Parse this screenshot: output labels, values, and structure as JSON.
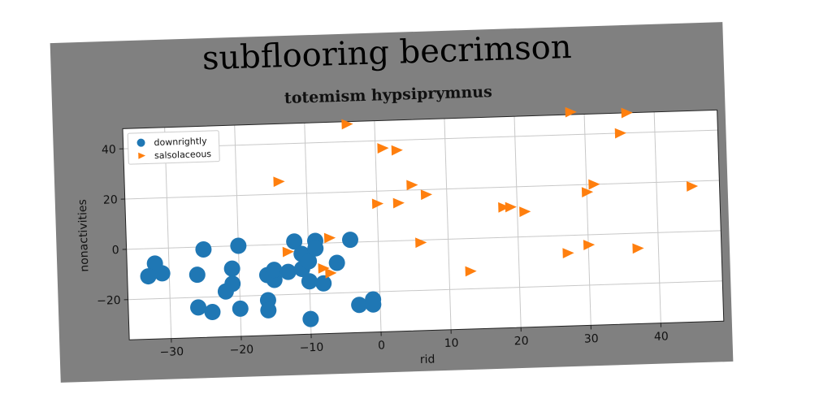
{
  "chart_data": {
    "type": "scatter",
    "suptitle": "subflooring becrimson",
    "title": "totemism hypsiprymnus",
    "xlabel": "rid",
    "ylabel": "nonactivities",
    "xlim": [
      -36,
      49
    ],
    "ylim": [
      -36,
      48
    ],
    "xticks": [
      -30,
      -20,
      -10,
      0,
      10,
      20,
      30,
      40
    ],
    "yticks": [
      -20,
      0,
      20,
      40
    ],
    "grid": true,
    "legend_position": "top-left",
    "series": [
      {
        "name": "downrightly",
        "marker": "circle",
        "color": "#1f77b4",
        "points": [
          [
            -32,
            -6
          ],
          [
            -31,
            -10
          ],
          [
            -33,
            -11
          ],
          [
            -25,
            -1
          ],
          [
            -26,
            -11
          ],
          [
            -26,
            -24
          ],
          [
            -24,
            -26
          ],
          [
            -21,
            -9
          ],
          [
            -21,
            -15
          ],
          [
            -22,
            -18
          ],
          [
            -20,
            0
          ],
          [
            -20,
            -25
          ],
          [
            -16,
            -12
          ],
          [
            -15,
            -14
          ],
          [
            -15,
            -10
          ],
          [
            -16,
            -22
          ],
          [
            -16,
            -26
          ],
          [
            -13,
            -11
          ],
          [
            -12,
            1
          ],
          [
            -11,
            -10
          ],
          [
            -11,
            -4
          ],
          [
            -10,
            -7
          ],
          [
            -9,
            1
          ],
          [
            -9,
            -2
          ],
          [
            -10,
            -15
          ],
          [
            -8,
            -16
          ],
          [
            -6,
            -8
          ],
          [
            -4,
            1
          ],
          [
            -3,
            -25
          ],
          [
            -1,
            -23
          ],
          [
            -1,
            -25
          ],
          [
            -10,
            -30
          ]
        ]
      },
      {
        "name": "salsolaceous",
        "marker": "triangle-right",
        "color": "#ff7f0e",
        "points": [
          [
            -4,
            47
          ],
          [
            -14,
            25
          ],
          [
            1,
            37
          ],
          [
            3,
            36
          ],
          [
            -13,
            -3
          ],
          [
            -7,
            2
          ],
          [
            -8,
            -10
          ],
          [
            -7,
            -12
          ],
          [
            0,
            15
          ],
          [
            3,
            15
          ],
          [
            5,
            22
          ],
          [
            7,
            18
          ],
          [
            6,
            -1
          ],
          [
            13,
            -13
          ],
          [
            18,
            12
          ],
          [
            19,
            12
          ],
          [
            21,
            10
          ],
          [
            27,
            -7
          ],
          [
            28,
            49
          ],
          [
            30,
            17
          ],
          [
            31,
            20
          ],
          [
            30,
            -4
          ],
          [
            35,
            40
          ],
          [
            36,
            48
          ],
          [
            37,
            -6
          ],
          [
            45,
            18
          ]
        ]
      }
    ]
  }
}
